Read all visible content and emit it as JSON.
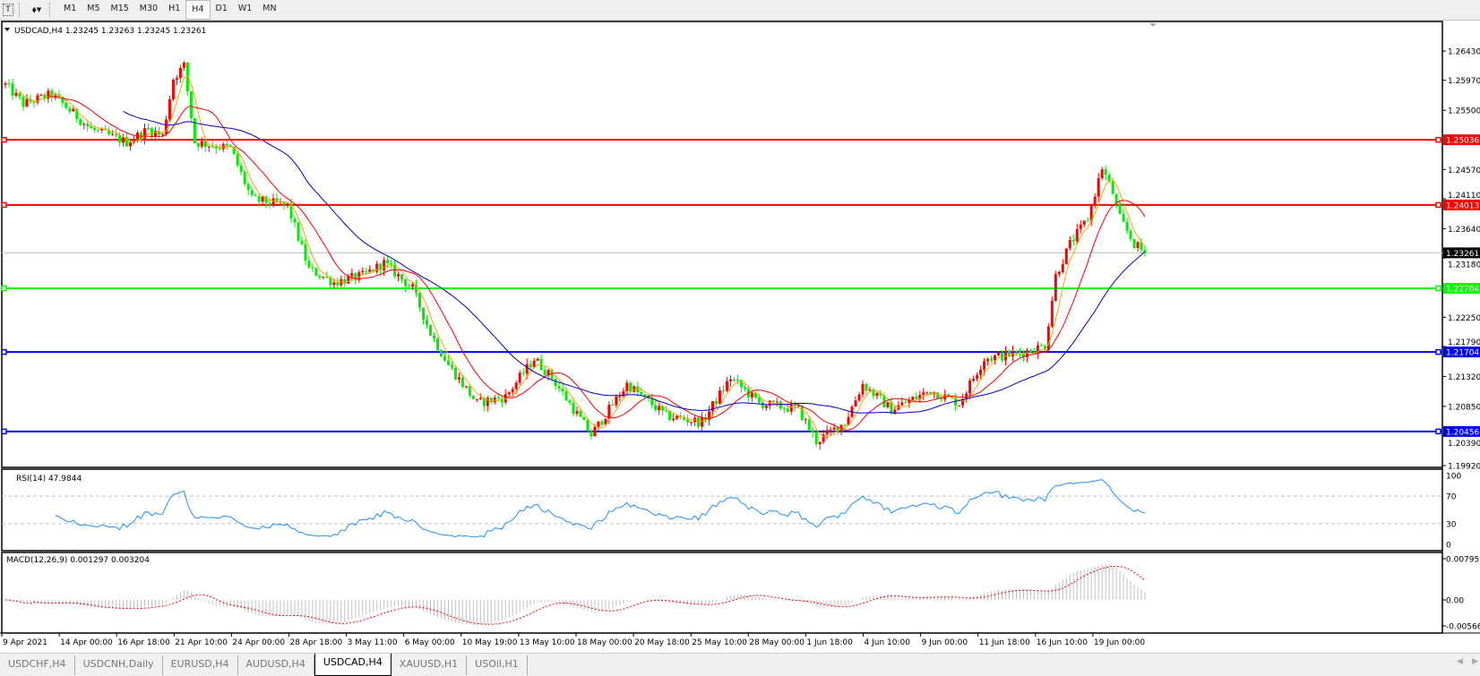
{
  "toolbar": {
    "icons": [
      "text-tool-icon",
      "shapes-dropdown-icon"
    ],
    "timeframes": [
      "M1",
      "M5",
      "M15",
      "M30",
      "H1",
      "H4",
      "D1",
      "W1",
      "MN"
    ],
    "active_timeframe": "H4"
  },
  "chart_header": "USDCAD,H4  1.23245 1.23263 1.23245 1.23261",
  "colors": {
    "bull_candle": "#ff0000",
    "bear_candle": "#00ee00",
    "ma_fast": "#ffa500",
    "ma_mid": "#ff0000",
    "ma_slow": "#0000cc",
    "rsi_line": "#1e90ff",
    "macd_signal": "#ff0000",
    "macd_hist": "#c0c0c0"
  },
  "price_axis": {
    "ticks": [
      "1.26430",
      "1.25970",
      "1.25500",
      "1.24570",
      "1.24110",
      "1.23640",
      "1.23180",
      "1.22250",
      "1.21790",
      "1.21320",
      "1.20850",
      "1.20390",
      "1.19920"
    ],
    "bid": "1.23261"
  },
  "levels": [
    {
      "price": "1.25036",
      "color": "#ff0000"
    },
    {
      "price": "1.24013",
      "color": "#ff0000"
    },
    {
      "price": "1.22704",
      "color": "#00ff00"
    },
    {
      "price": "1.21704",
      "color": "#0000ff"
    },
    {
      "price": "1.20456",
      "color": "#0000ff"
    }
  ],
  "time_axis": [
    "9 Apr 2021",
    "14 Apr 00:00",
    "16 Apr 18:00",
    "21 Apr 10:00",
    "24 Apr 00:00",
    "28 Apr 18:00",
    "3 May 11:00",
    "6 May 00:00",
    "10 May 19:00",
    "13 May 10:00",
    "18 May 00:00",
    "20 May 18:00",
    "25 May 10:00",
    "28 May 00:00",
    "1 Jun 18:00",
    "4 Jun 10:00",
    "9 Jun 00:00",
    "11 Jun 18:00",
    "16 Jun 10:00",
    "19 Jun 00:00"
  ],
  "rsi": {
    "label": "RSI(14) 47.9844",
    "ticks": [
      "100",
      "70",
      "30",
      "0"
    ]
  },
  "macd": {
    "label": "MACD(12,26,9) 0.001297 0.003204",
    "ticks": [
      "0.007959",
      "0.00",
      "-0.005663"
    ]
  },
  "chart_data": {
    "type": "candlestick",
    "symbol": "USDCAD",
    "timeframe": "H4",
    "ylim": [
      1.19892,
      1.26894
    ],
    "approx_close_by_bar": [
      [
        0,
        1.259
      ],
      [
        5,
        1.256
      ],
      [
        13,
        1.2575
      ],
      [
        24,
        1.252
      ],
      [
        34,
        1.25
      ],
      [
        40,
        1.252
      ],
      [
        44,
        1.251
      ],
      [
        47,
        1.26
      ],
      [
        50,
        1.262
      ],
      [
        53,
        1.25
      ],
      [
        63,
        1.249
      ],
      [
        69,
        1.241
      ],
      [
        79,
        1.24
      ],
      [
        85,
        1.23
      ],
      [
        92,
        1.228
      ],
      [
        100,
        1.229
      ],
      [
        106,
        1.231
      ],
      [
        114,
        1.227
      ],
      [
        119,
        1.22
      ],
      [
        124,
        1.215
      ],
      [
        132,
        1.209
      ],
      [
        140,
        1.21
      ],
      [
        148,
        1.216
      ],
      [
        153,
        1.213
      ],
      [
        164,
        1.204
      ],
      [
        174,
        1.212
      ],
      [
        185,
        1.207
      ],
      [
        195,
        1.206
      ],
      [
        203,
        1.213
      ],
      [
        211,
        1.209
      ],
      [
        222,
        1.208
      ],
      [
        227,
        1.203
      ],
      [
        235,
        1.206
      ],
      [
        240,
        1.212
      ],
      [
        248,
        1.208
      ],
      [
        259,
        1.211
      ],
      [
        267,
        1.209
      ],
      [
        274,
        1.216
      ],
      [
        285,
        1.217
      ],
      [
        291,
        1.218
      ],
      [
        294,
        1.229
      ],
      [
        298,
        1.234
      ],
      [
        303,
        1.238
      ],
      [
        307,
        1.246
      ],
      [
        310,
        1.242
      ],
      [
        312,
        1.238
      ],
      [
        316,
        1.234
      ],
      [
        319,
        1.23261
      ]
    ]
  },
  "tabs": [
    {
      "label": "USDCHF,H4"
    },
    {
      "label": "USDCNH,Daily"
    },
    {
      "label": "EURUSD,H4"
    },
    {
      "label": "AUDUSD,H4"
    },
    {
      "label": "USDCAD,H4",
      "active": true
    },
    {
      "label": "XAUUSD,H1"
    },
    {
      "label": "USOil,H1"
    }
  ]
}
